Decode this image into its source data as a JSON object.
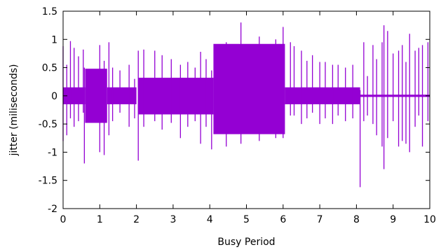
{
  "chart_data": {
    "type": "line",
    "title": "",
    "xlabel": "Busy Period",
    "ylabel": "jitter (miliseconds)",
    "xlim": [
      0,
      10
    ],
    "ylim": [
      -2,
      1.5
    ],
    "xticks": [
      0,
      1,
      2,
      3,
      4,
      5,
      6,
      7,
      8,
      9,
      10
    ],
    "xtick_labels": [
      "0",
      "1",
      "2",
      "3",
      "4",
      "5",
      "6",
      "7",
      "8",
      "9",
      "10"
    ],
    "yticks": [
      -2,
      -1.5,
      -1,
      -0.5,
      0,
      0.5,
      1,
      1.5
    ],
    "ytick_labels": [
      "-2",
      "-1.5",
      "-1",
      "-0.5",
      "0",
      "0.5",
      "1",
      "1.5"
    ],
    "grid": false,
    "legend": "none",
    "series_color": "#9400d3",
    "series": [
      {
        "bands": [
          {
            "x": [
              0.0,
              0.6
            ],
            "y": [
              -0.15,
              0.15
            ]
          },
          {
            "x": [
              0.6,
              1.2
            ],
            "y": [
              -0.48,
              0.48
            ]
          },
          {
            "x": [
              1.2,
              2.0
            ],
            "y": [
              -0.15,
              0.15
            ]
          },
          {
            "x": [
              2.05,
              4.1
            ],
            "y": [
              -0.33,
              0.32
            ]
          },
          {
            "x": [
              4.1,
              6.05
            ],
            "y": [
              -0.68,
              0.92
            ]
          },
          {
            "x": [
              6.05,
              8.1
            ],
            "y": [
              -0.15,
              0.15
            ]
          },
          {
            "x": [
              8.1,
              10.0
            ],
            "y": [
              -0.02,
              0.02
            ]
          }
        ],
        "spikes": [
          [
            0.0,
            -0.8,
            0.88
          ],
          [
            0.1,
            -0.7,
            0.55
          ],
          [
            0.2,
            -0.4,
            0.97
          ],
          [
            0.3,
            -0.55,
            0.85
          ],
          [
            0.42,
            -0.45,
            0.7
          ],
          [
            0.55,
            -0.3,
            0.82
          ],
          [
            0.58,
            -1.2,
            0.5
          ],
          [
            1.0,
            -1.0,
            0.9
          ],
          [
            1.12,
            -1.05,
            0.62
          ],
          [
            1.25,
            -0.7,
            0.95
          ],
          [
            1.35,
            -0.45,
            0.5
          ],
          [
            1.55,
            -0.3,
            0.45
          ],
          [
            1.8,
            -0.55,
            0.55
          ],
          [
            1.95,
            -0.4,
            0.3
          ],
          [
            2.05,
            -1.15,
            0.8
          ],
          [
            2.2,
            -0.55,
            0.82
          ],
          [
            2.5,
            -0.45,
            0.8
          ],
          [
            2.7,
            -0.6,
            0.72
          ],
          [
            2.95,
            -0.48,
            0.65
          ],
          [
            3.2,
            -0.75,
            0.55
          ],
          [
            3.4,
            -0.55,
            0.6
          ],
          [
            3.6,
            -0.45,
            0.5
          ],
          [
            3.75,
            -0.85,
            0.78
          ],
          [
            3.9,
            -0.55,
            0.65
          ],
          [
            4.05,
            -0.95,
            0.45
          ],
          [
            4.45,
            -0.9,
            0.95
          ],
          [
            4.85,
            -0.85,
            1.3
          ],
          [
            5.35,
            -0.8,
            1.05
          ],
          [
            5.8,
            -0.75,
            1.0
          ],
          [
            6.0,
            -0.75,
            1.22
          ],
          [
            6.2,
            -0.35,
            0.95
          ],
          [
            6.3,
            -0.35,
            0.88
          ],
          [
            6.5,
            -0.5,
            0.8
          ],
          [
            6.65,
            -0.4,
            0.62
          ],
          [
            6.8,
            -0.3,
            0.72
          ],
          [
            7.0,
            -0.5,
            0.6
          ],
          [
            7.15,
            -0.4,
            0.6
          ],
          [
            7.35,
            -0.5,
            0.55
          ],
          [
            7.5,
            -0.35,
            0.55
          ],
          [
            7.7,
            -0.45,
            0.5
          ],
          [
            7.9,
            -0.4,
            0.55
          ],
          [
            8.1,
            -1.62,
            0.1
          ],
          [
            8.2,
            -0.45,
            0.95
          ],
          [
            8.3,
            -0.35,
            0.35
          ],
          [
            8.45,
            -0.5,
            0.9
          ],
          [
            8.55,
            -0.7,
            0.65
          ],
          [
            8.7,
            -0.9,
            0.95
          ],
          [
            8.75,
            -1.3,
            1.25
          ],
          [
            8.85,
            -0.75,
            1.15
          ],
          [
            9.0,
            -0.45,
            0.75
          ],
          [
            9.15,
            -0.9,
            0.8
          ],
          [
            9.25,
            -0.8,
            0.9
          ],
          [
            9.35,
            -0.85,
            0.6
          ],
          [
            9.45,
            -1.0,
            1.1
          ],
          [
            9.6,
            -0.55,
            0.8
          ],
          [
            9.7,
            -0.35,
            0.85
          ],
          [
            9.8,
            -0.9,
            0.9
          ],
          [
            9.95,
            -0.45,
            0.95
          ]
        ]
      }
    ]
  }
}
